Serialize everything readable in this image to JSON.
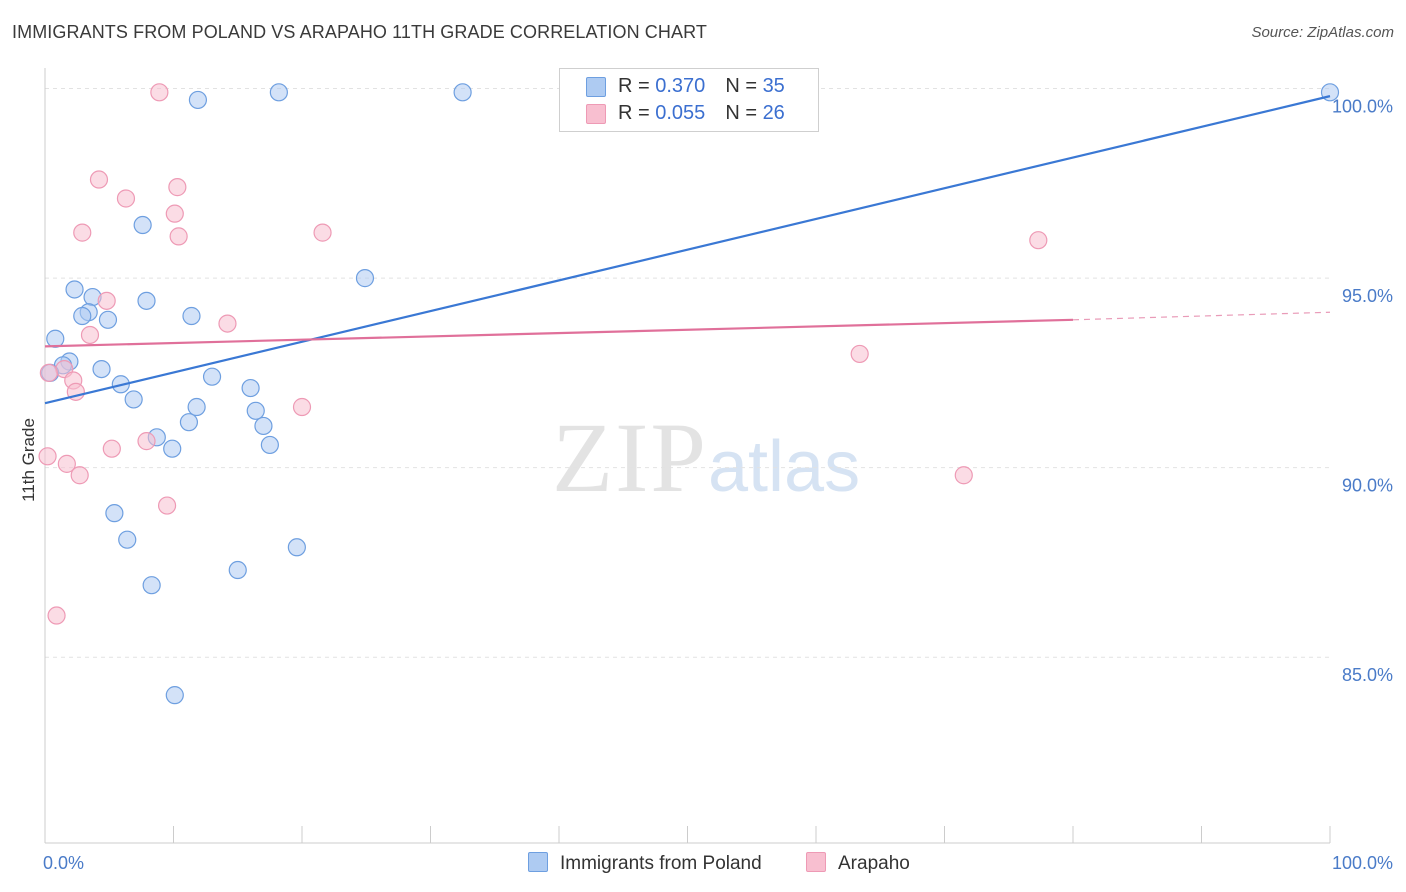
{
  "header": {
    "title": "IMMIGRANTS FROM POLAND VS ARAPAHO 11TH GRADE CORRELATION CHART",
    "source": "Source: ZipAtlas.com"
  },
  "watermark": {
    "zip": "ZIP",
    "atlas": "atlas"
  },
  "legend": {
    "rows": [
      {
        "r_label": "R =",
        "r_value": "0.370",
        "n_label": "N =",
        "n_value": "35",
        "color": "#aecbf2"
      },
      {
        "r_label": "R =",
        "r_value": "0.055",
        "n_label": "N =",
        "n_value": "26",
        "color": "#f8bfd0"
      }
    ]
  },
  "bottom_legend": {
    "poland": "Immigrants from Poland",
    "arapaho": "Arapaho"
  },
  "chart_data": {
    "type": "scatter",
    "ylabel": "11th Grade",
    "xlim": [
      0,
      100
    ],
    "ylim": [
      80.1,
      100.7
    ],
    "x_tick_labels": [
      "0.0%",
      "100.0%"
    ],
    "y_ticks": [
      85,
      90,
      95,
      100
    ],
    "y_tick_labels": [
      "85.0%",
      "90.0%",
      "95.0%",
      "100.0%"
    ],
    "grid": true,
    "legend_placement": "top-center",
    "series": [
      {
        "name": "Immigrants from Poland",
        "color": "#6e9fe0",
        "fill": "#aecbf2",
        "line_color": "#3a78d4",
        "trend": [
          [
            0,
            91.7
          ],
          [
            100,
            99.8
          ]
        ],
        "points": [
          [
            11.9,
            99.7
          ],
          [
            18.2,
            99.9
          ],
          [
            32.5,
            99.9
          ],
          [
            100,
            99.9
          ],
          [
            7.6,
            96.4
          ],
          [
            24.9,
            95.0
          ],
          [
            2.3,
            94.7
          ],
          [
            3.7,
            94.5
          ],
          [
            7.9,
            94.4
          ],
          [
            3.4,
            94.1
          ],
          [
            11.4,
            94.0
          ],
          [
            2.9,
            94.0
          ],
          [
            4.9,
            93.9
          ],
          [
            0.8,
            93.4
          ],
          [
            1.9,
            92.8
          ],
          [
            1.4,
            92.7
          ],
          [
            4.4,
            92.6
          ],
          [
            0.4,
            92.5
          ],
          [
            13.0,
            92.4
          ],
          [
            5.9,
            92.2
          ],
          [
            16.0,
            92.1
          ],
          [
            6.9,
            91.8
          ],
          [
            11.8,
            91.6
          ],
          [
            16.4,
            91.5
          ],
          [
            11.2,
            91.2
          ],
          [
            17.0,
            91.1
          ],
          [
            8.7,
            90.8
          ],
          [
            17.5,
            90.6
          ],
          [
            9.9,
            90.5
          ],
          [
            5.4,
            88.8
          ],
          [
            6.4,
            88.1
          ],
          [
            19.6,
            87.9
          ],
          [
            15.0,
            87.3
          ],
          [
            8.3,
            86.9
          ],
          [
            10.1,
            84.0
          ]
        ]
      },
      {
        "name": "Arapaho",
        "color": "#ee9ab5",
        "fill": "#f8bfd0",
        "line_color": "#e0709a",
        "trend": [
          [
            0,
            93.2
          ],
          [
            80,
            93.9
          ]
        ],
        "trend_dashed": [
          [
            80,
            93.9
          ],
          [
            100,
            94.1
          ]
        ],
        "points": [
          [
            8.9,
            99.9
          ],
          [
            4.2,
            97.6
          ],
          [
            6.3,
            97.1
          ],
          [
            10.3,
            97.4
          ],
          [
            10.1,
            96.7
          ],
          [
            2.9,
            96.2
          ],
          [
            10.4,
            96.1
          ],
          [
            21.6,
            96.2
          ],
          [
            77.3,
            96.0
          ],
          [
            4.8,
            94.4
          ],
          [
            14.2,
            93.8
          ],
          [
            3.5,
            93.5
          ],
          [
            63.4,
            93.0
          ],
          [
            1.5,
            92.6
          ],
          [
            2.2,
            92.3
          ],
          [
            2.4,
            92.0
          ],
          [
            0.3,
            92.5
          ],
          [
            20.0,
            91.6
          ],
          [
            7.9,
            90.7
          ],
          [
            5.2,
            90.5
          ],
          [
            0.2,
            90.3
          ],
          [
            1.7,
            90.1
          ],
          [
            2.7,
            89.8
          ],
          [
            71.5,
            89.8
          ],
          [
            9.5,
            89.0
          ],
          [
            0.9,
            86.1
          ]
        ]
      }
    ]
  }
}
